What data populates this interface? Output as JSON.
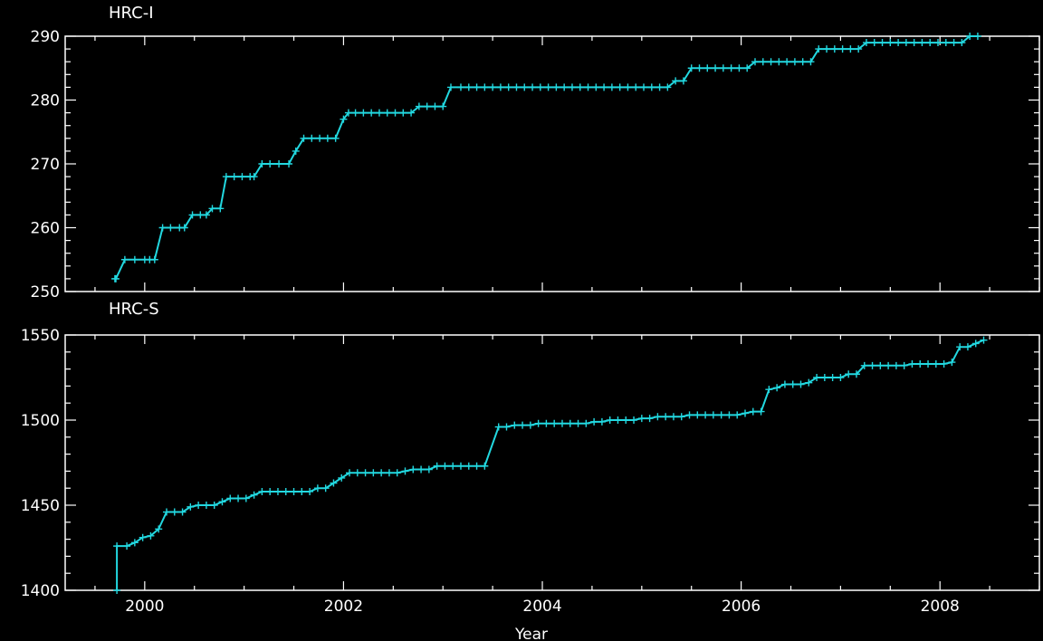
{
  "colors": {
    "background": "#000000",
    "axes": "#ffffff",
    "series": "#22d8e0"
  },
  "chart_data": [
    {
      "type": "line",
      "title": "HRC-I",
      "xlabel": "",
      "ylabel": "",
      "xlim": [
        1999.2,
        2009.0
      ],
      "ylim": [
        250,
        290
      ],
      "x_ticks": [
        2000,
        2002,
        2004,
        2006,
        2008
      ],
      "y_ticks": [
        250,
        260,
        270,
        280,
        290
      ],
      "series": [
        {
          "x": [
            1999.7,
            1999.71,
            1999.8,
            1999.9,
            2000.0,
            2000.05,
            2000.1,
            2000.18,
            2000.26,
            2000.35,
            2000.4,
            2000.48,
            2000.56,
            2000.62,
            2000.68,
            2000.76,
            2000.82,
            2000.9,
            2000.98,
            2001.06,
            2001.1,
            2001.18,
            2001.26,
            2001.35,
            2001.45,
            2001.52,
            2001.6,
            2001.68,
            2001.76,
            2001.84,
            2001.92,
            2002.0,
            2002.05,
            2002.12,
            2002.2,
            2002.28,
            2002.36,
            2002.44,
            2002.52,
            2002.6,
            2002.68,
            2002.76,
            2002.84,
            2002.92,
            2003.0,
            2003.08,
            2003.18,
            2003.26,
            2003.34,
            2003.42,
            2003.5,
            2003.58,
            2003.66,
            2003.74,
            2003.82,
            2003.9,
            2003.98,
            2004.06,
            2004.14,
            2004.22,
            2004.3,
            2004.38,
            2004.46,
            2004.54,
            2004.62,
            2004.7,
            2004.78,
            2004.86,
            2004.94,
            2005.02,
            2005.1,
            2005.18,
            2005.26,
            2005.34,
            2005.42,
            2005.5,
            2005.58,
            2005.66,
            2005.74,
            2005.82,
            2005.9,
            2005.98,
            2006.06,
            2006.14,
            2006.22,
            2006.3,
            2006.38,
            2006.46,
            2006.54,
            2006.62,
            2006.7,
            2006.78,
            2006.86,
            2006.94,
            2007.02,
            2007.1,
            2007.18,
            2007.26,
            2007.34,
            2007.42,
            2007.5,
            2007.58,
            2007.66,
            2007.74,
            2007.82,
            2007.9,
            2007.98,
            2008.06,
            2008.14,
            2008.22,
            2008.3,
            2008.38
          ],
          "y": [
            252,
            252,
            255,
            255,
            255,
            255,
            255,
            260,
            260,
            260,
            260,
            262,
            262,
            262,
            263,
            263,
            268,
            268,
            268,
            268,
            268,
            270,
            270,
            270,
            270,
            272,
            274,
            274,
            274,
            274,
            274,
            277,
            278,
            278,
            278,
            278,
            278,
            278,
            278,
            278,
            278,
            279,
            279,
            279,
            279,
            282,
            282,
            282,
            282,
            282,
            282,
            282,
            282,
            282,
            282,
            282,
            282,
            282,
            282,
            282,
            282,
            282,
            282,
            282,
            282,
            282,
            282,
            282,
            282,
            282,
            282,
            282,
            282,
            283,
            283,
            285,
            285,
            285,
            285,
            285,
            285,
            285,
            285,
            286,
            286,
            286,
            286,
            286,
            286,
            286,
            286,
            288,
            288,
            288,
            288,
            288,
            288,
            289,
            289,
            289,
            289,
            289,
            289,
            289,
            289,
            289,
            289,
            289,
            289,
            289,
            290,
            290
          ]
        }
      ]
    },
    {
      "type": "line",
      "title": "HRC-S",
      "xlabel": "Year",
      "ylabel": "",
      "xlim": [
        1999.2,
        2009.0
      ],
      "ylim": [
        1400,
        1550
      ],
      "x_ticks": [
        2000,
        2002,
        2004,
        2006,
        2008
      ],
      "y_ticks": [
        1400,
        1450,
        1500,
        1550
      ],
      "series": [
        {
          "x": [
            1999.72,
            1999.72,
            1999.82,
            1999.9,
            1999.98,
            2000.06,
            2000.14,
            2000.22,
            2000.3,
            2000.38,
            2000.46,
            2000.54,
            2000.62,
            2000.7,
            2000.78,
            2000.86,
            2000.94,
            2001.02,
            2001.1,
            2001.18,
            2001.26,
            2001.34,
            2001.42,
            2001.5,
            2001.58,
            2001.66,
            2001.74,
            2001.82,
            2001.9,
            2001.98,
            2002.06,
            2002.14,
            2002.22,
            2002.3,
            2002.38,
            2002.46,
            2002.54,
            2002.62,
            2002.7,
            2002.78,
            2002.86,
            2002.94,
            2003.02,
            2003.1,
            2003.18,
            2003.26,
            2003.34,
            2003.42,
            2003.56,
            2003.64,
            2003.72,
            2003.8,
            2003.88,
            2003.96,
            2004.04,
            2004.12,
            2004.2,
            2004.28,
            2004.36,
            2004.44,
            2004.52,
            2004.6,
            2004.68,
            2004.76,
            2004.84,
            2004.92,
            2005.0,
            2005.08,
            2005.16,
            2005.24,
            2005.32,
            2005.4,
            2005.48,
            2005.56,
            2005.64,
            2005.72,
            2005.8,
            2005.88,
            2005.96,
            2006.04,
            2006.12,
            2006.2,
            2006.28,
            2006.36,
            2006.44,
            2006.52,
            2006.6,
            2006.68,
            2006.76,
            2006.84,
            2006.92,
            2007.0,
            2007.08,
            2007.16,
            2007.24,
            2007.32,
            2007.4,
            2007.48,
            2007.56,
            2007.64,
            2007.72,
            2007.8,
            2007.88,
            2007.96,
            2008.04,
            2008.12,
            2008.2,
            2008.28,
            2008.36,
            2008.44
          ],
          "y": [
            1400,
            1426,
            1426,
            1428,
            1431,
            1432,
            1436,
            1446,
            1446,
            1446,
            1449,
            1450,
            1450,
            1450,
            1452,
            1454,
            1454,
            1454,
            1456,
            1458,
            1458,
            1458,
            1458,
            1458,
            1458,
            1458,
            1460,
            1460,
            1463,
            1466,
            1469,
            1469,
            1469,
            1469,
            1469,
            1469,
            1469,
            1470,
            1471,
            1471,
            1471,
            1473,
            1473,
            1473,
            1473,
            1473,
            1473,
            1473,
            1496,
            1496,
            1497,
            1497,
            1497,
            1498,
            1498,
            1498,
            1498,
            1498,
            1498,
            1498,
            1499,
            1499,
            1500,
            1500,
            1500,
            1500,
            1501,
            1501,
            1502,
            1502,
            1502,
            1502,
            1503,
            1503,
            1503,
            1503,
            1503,
            1503,
            1503,
            1504,
            1505,
            1505,
            1518,
            1519,
            1521,
            1521,
            1521,
            1522,
            1525,
            1525,
            1525,
            1525,
            1527,
            1527,
            1532,
            1532,
            1532,
            1532,
            1532,
            1532,
            1533,
            1533,
            1533,
            1533,
            1533,
            1534,
            1543,
            1543,
            1545,
            1547
          ]
        }
      ]
    }
  ]
}
